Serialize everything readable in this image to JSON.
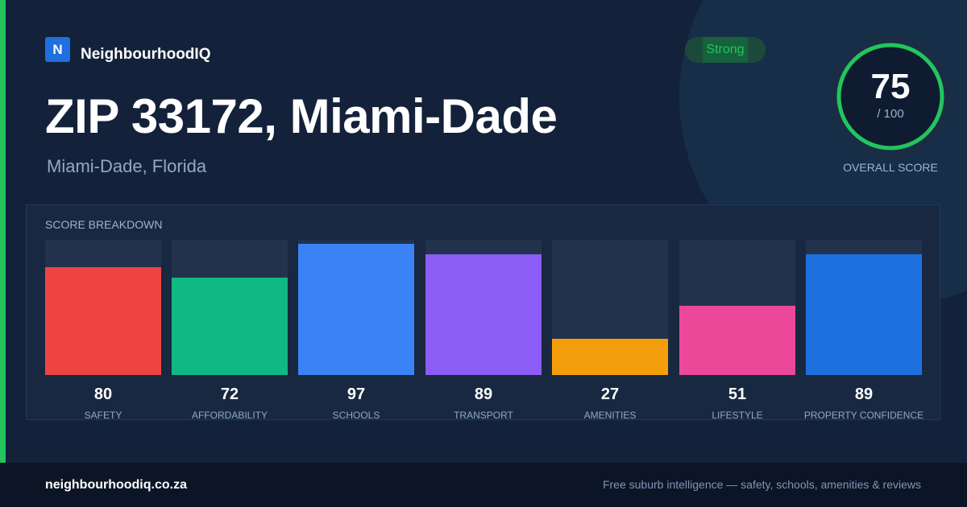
{
  "brand": {
    "logo_letter": "N",
    "name": "NeighbourhoodIQ"
  },
  "header": {
    "title": "ZIP 33172, Miami-Dade",
    "subtitle": "Miami-Dade, Florida"
  },
  "badge": {
    "label": "Strong",
    "color": "#22c55e"
  },
  "overall": {
    "score": 75,
    "score_text": "75",
    "max_text": "/ 100",
    "label": "OVERALL SCORE",
    "ring_color": "#22c55e"
  },
  "chart_data": {
    "type": "bar",
    "title": "SCORE BREAKDOWN",
    "categories": [
      "SAFETY",
      "AFFORDABILITY",
      "SCHOOLS",
      "TRANSPORT",
      "AMENITIES",
      "LIFESTYLE",
      "PROPERTY CONFIDENCE"
    ],
    "values": [
      80,
      72,
      97,
      89,
      27,
      51,
      89
    ],
    "value_labels": [
      "80",
      "72",
      "97",
      "89",
      "27",
      "51",
      "89"
    ],
    "colors": [
      "#ef4444",
      "#10b981",
      "#3b82f6",
      "#8b5cf6",
      "#f59e0b",
      "#ec4899",
      "#1e6fe0"
    ],
    "ylim": [
      0,
      100
    ],
    "grid": false
  },
  "footer": {
    "site": "neighbourhoodiq.co.za",
    "tagline": "Free suburb intelligence — safety, schools, amenities & reviews"
  }
}
